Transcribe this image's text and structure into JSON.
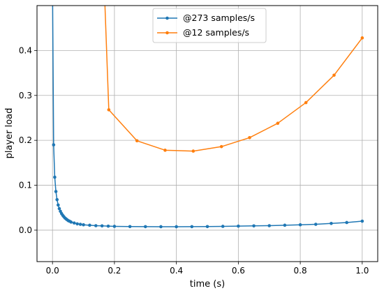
{
  "chart_data": {
    "type": "line",
    "xlabel": "time (s)",
    "ylabel": "player load",
    "xlim": [
      -0.05,
      1.05
    ],
    "ylim": [
      -0.07,
      0.5
    ],
    "xticks": [
      0.0,
      0.2,
      0.4,
      0.6,
      0.8,
      1.0
    ],
    "xtick_labels": [
      "0.0",
      "0.2",
      "0.4",
      "0.6",
      "0.8",
      "1.0"
    ],
    "yticks": [
      0.0,
      0.1,
      0.2,
      0.3,
      0.4
    ],
    "ytick_labels": [
      "0.0",
      "0.1",
      "0.2",
      "0.3",
      "0.4"
    ],
    "grid": true,
    "legend_position": "top-center",
    "series": [
      {
        "name": "@273 samples/s",
        "color": "#1f77b4",
        "marker_every": 1,
        "x": [
          0.0,
          0.0037,
          0.0073,
          0.011,
          0.0147,
          0.0183,
          0.022,
          0.0256,
          0.0293,
          0.033,
          0.0366,
          0.0403,
          0.044,
          0.0476,
          0.0513,
          0.055,
          0.06,
          0.07,
          0.08,
          0.09,
          0.1,
          0.12,
          0.14,
          0.16,
          0.18,
          0.2,
          0.25,
          0.3,
          0.35,
          0.4,
          0.45,
          0.5,
          0.55,
          0.6,
          0.65,
          0.7,
          0.75,
          0.8,
          0.85,
          0.9,
          0.95,
          1.0
        ],
        "y": [
          0.55,
          0.19,
          0.118,
          0.086,
          0.068,
          0.056,
          0.048,
          0.042,
          0.037,
          0.033,
          0.03,
          0.027,
          0.025,
          0.023,
          0.021,
          0.02,
          0.018,
          0.016,
          0.014,
          0.013,
          0.012,
          0.011,
          0.01,
          0.0095,
          0.009,
          0.0085,
          0.008,
          0.0078,
          0.0077,
          0.0077,
          0.0078,
          0.008,
          0.0085,
          0.009,
          0.0095,
          0.01,
          0.011,
          0.012,
          0.013,
          0.015,
          0.017,
          0.02
        ]
      },
      {
        "name": "@12 samples/s",
        "color": "#ff7f0e",
        "x": [
          0.1667,
          0.1818,
          0.2727,
          0.3636,
          0.4545,
          0.5455,
          0.6364,
          0.7273,
          0.8182,
          0.9091,
          1.0
        ],
        "y": [
          0.55,
          0.268,
          0.199,
          0.178,
          0.176,
          0.186,
          0.206,
          0.238,
          0.284,
          0.345,
          0.428
        ],
        "marked_points": [
          false,
          true,
          true,
          true,
          true,
          true,
          true,
          true,
          true,
          true,
          true
        ]
      }
    ]
  }
}
